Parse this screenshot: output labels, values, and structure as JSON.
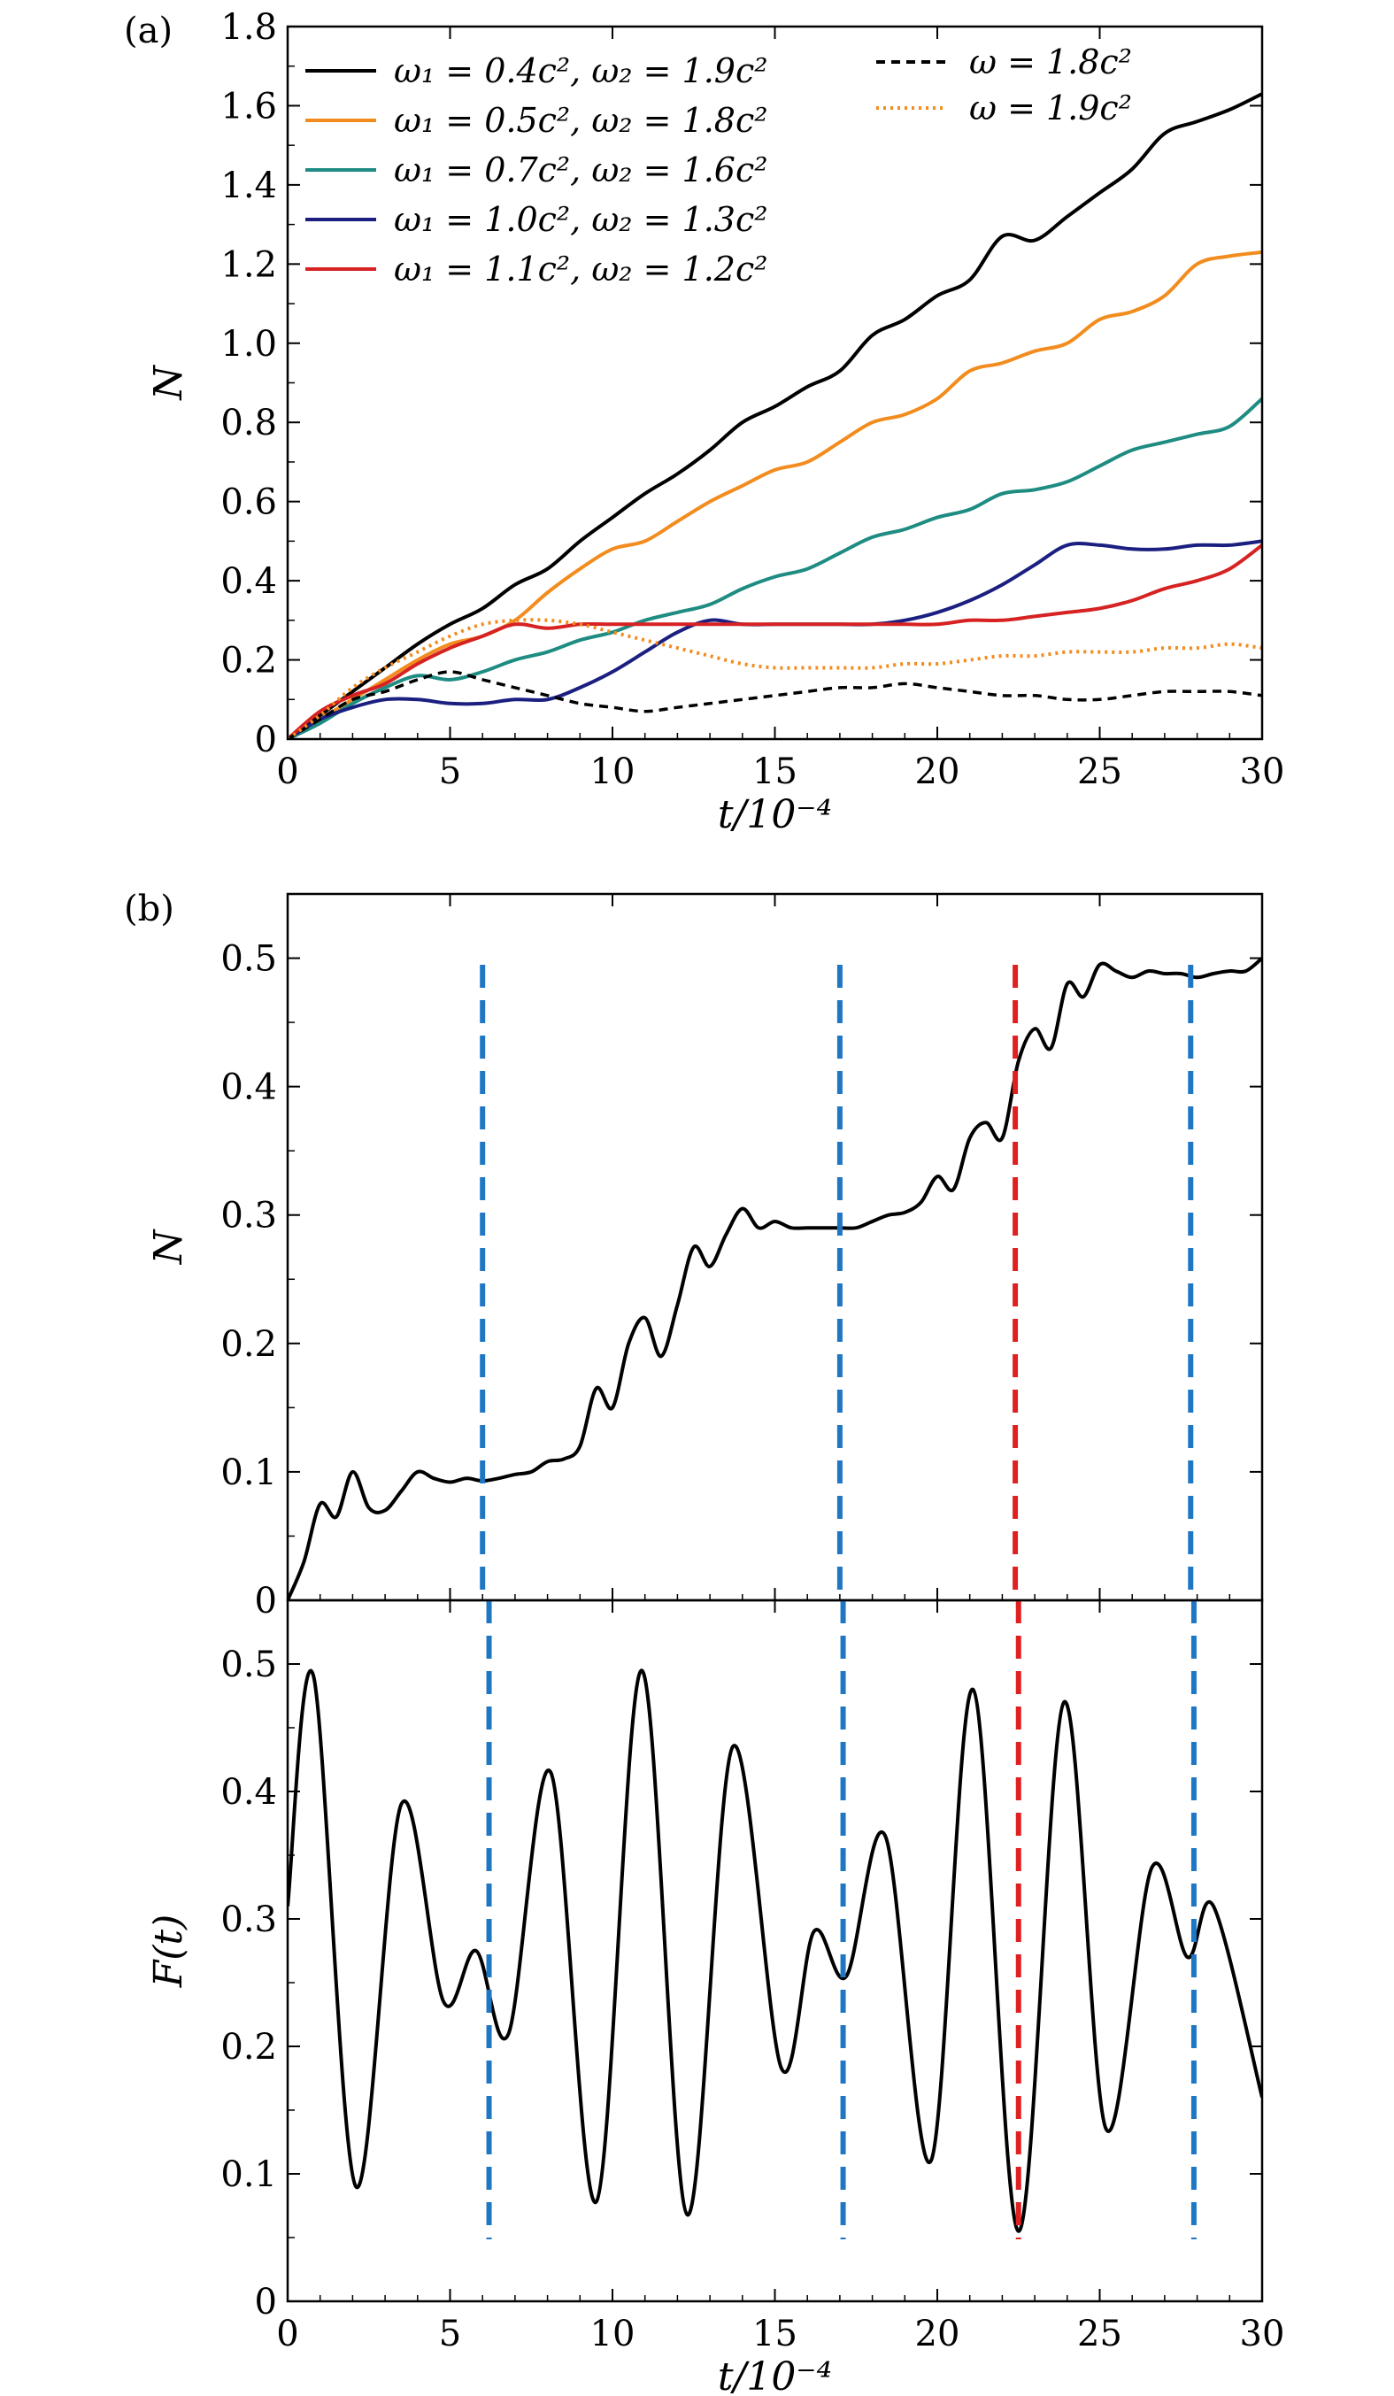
{
  "chart_data": [
    {
      "panel": "(a)",
      "type": "line",
      "xlabel": "t/10⁻⁴",
      "ylabel": "N",
      "xlim": [
        0,
        30
      ],
      "ylim": [
        0,
        1.8
      ],
      "xticks": [
        0,
        5,
        10,
        15,
        20,
        25,
        30
      ],
      "yticks": [
        0,
        0.2,
        0.4,
        0.6,
        0.8,
        1.0,
        1.2,
        1.4,
        1.6,
        1.8
      ],
      "ytick_labels": [
        "0",
        "0.2",
        "0.4",
        "0.6",
        "0.8",
        "1.0",
        "1.2",
        "1.4",
        "1.6",
        "1.8"
      ],
      "legend_position": "top-left",
      "series": [
        {
          "name": "ω₁ = 0.4c², ω₂ = 1.9c²",
          "color": "#000000",
          "style": "solid",
          "x": [
            0,
            1,
            2,
            3,
            4,
            5,
            6,
            7,
            8,
            9,
            10,
            11,
            12,
            13,
            14,
            15,
            16,
            17,
            18,
            19,
            20,
            21,
            22,
            23,
            24,
            25,
            26,
            27,
            28,
            29,
            30
          ],
          "y": [
            0,
            0.06,
            0.12,
            0.18,
            0.24,
            0.29,
            0.33,
            0.39,
            0.43,
            0.5,
            0.56,
            0.62,
            0.67,
            0.73,
            0.8,
            0.84,
            0.89,
            0.93,
            1.02,
            1.06,
            1.12,
            1.16,
            1.27,
            1.26,
            1.32,
            1.38,
            1.44,
            1.53,
            1.56,
            1.59,
            1.63
          ]
        },
        {
          "name": "ω₁ = 0.5c², ω₂ = 1.8c²",
          "color": "#f28c1e",
          "style": "solid",
          "x": [
            0,
            1,
            2,
            3,
            4,
            5,
            6,
            7,
            8,
            9,
            10,
            11,
            12,
            13,
            14,
            15,
            16,
            17,
            18,
            19,
            20,
            21,
            22,
            23,
            24,
            25,
            26,
            27,
            28,
            29,
            30
          ],
          "y": [
            0,
            0.05,
            0.1,
            0.15,
            0.2,
            0.24,
            0.26,
            0.3,
            0.37,
            0.43,
            0.48,
            0.5,
            0.55,
            0.6,
            0.64,
            0.68,
            0.7,
            0.75,
            0.8,
            0.82,
            0.86,
            0.93,
            0.95,
            0.98,
            1.0,
            1.06,
            1.08,
            1.12,
            1.2,
            1.22,
            1.23
          ]
        },
        {
          "name": "ω₁ = 0.7c², ω₂ = 1.6c²",
          "color": "#1e8c82",
          "style": "solid",
          "x": [
            0,
            1,
            2,
            3,
            4,
            5,
            6,
            7,
            8,
            9,
            10,
            11,
            12,
            13,
            14,
            15,
            16,
            17,
            18,
            19,
            20,
            21,
            22,
            23,
            24,
            25,
            26,
            27,
            28,
            29,
            30
          ],
          "y": [
            0,
            0.04,
            0.09,
            0.13,
            0.16,
            0.15,
            0.17,
            0.2,
            0.22,
            0.25,
            0.27,
            0.3,
            0.32,
            0.34,
            0.38,
            0.41,
            0.43,
            0.47,
            0.51,
            0.53,
            0.56,
            0.58,
            0.62,
            0.63,
            0.65,
            0.69,
            0.73,
            0.75,
            0.77,
            0.79,
            0.86
          ]
        },
        {
          "name": "ω₁ = 1.0c², ω₂ = 1.3c²",
          "color": "#1a1f80",
          "style": "solid",
          "x": [
            0,
            1,
            2,
            3,
            4,
            5,
            6,
            7,
            8,
            9,
            10,
            11,
            12,
            13,
            14,
            15,
            16,
            17,
            18,
            19,
            20,
            21,
            22,
            23,
            24,
            25,
            26,
            27,
            28,
            29,
            30
          ],
          "y": [
            0,
            0.05,
            0.08,
            0.1,
            0.1,
            0.09,
            0.09,
            0.1,
            0.1,
            0.13,
            0.17,
            0.22,
            0.27,
            0.3,
            0.29,
            0.29,
            0.29,
            0.29,
            0.29,
            0.3,
            0.32,
            0.35,
            0.39,
            0.44,
            0.49,
            0.49,
            0.48,
            0.48,
            0.49,
            0.49,
            0.5
          ]
        },
        {
          "name": "ω₁ = 1.1c², ω₂ = 1.2c²",
          "color": "#d62222",
          "style": "solid",
          "x": [
            0,
            1,
            2,
            3,
            4,
            5,
            6,
            7,
            8,
            9,
            10,
            11,
            12,
            13,
            14,
            15,
            16,
            17,
            18,
            19,
            20,
            21,
            22,
            23,
            24,
            25,
            26,
            27,
            28,
            29,
            30
          ],
          "y": [
            0,
            0.07,
            0.11,
            0.14,
            0.19,
            0.23,
            0.26,
            0.29,
            0.28,
            0.29,
            0.29,
            0.29,
            0.29,
            0.29,
            0.29,
            0.29,
            0.29,
            0.29,
            0.29,
            0.29,
            0.29,
            0.3,
            0.3,
            0.31,
            0.32,
            0.33,
            0.35,
            0.38,
            0.4,
            0.43,
            0.49
          ]
        },
        {
          "name": "ω = 1.8c²",
          "color": "#000000",
          "style": "dashed",
          "x": [
            0,
            1,
            2,
            3,
            4,
            5,
            6,
            7,
            8,
            9,
            10,
            11,
            12,
            13,
            14,
            15,
            16,
            17,
            18,
            19,
            20,
            21,
            22,
            23,
            24,
            25,
            26,
            27,
            28,
            29,
            30
          ],
          "y": [
            0,
            0.05,
            0.1,
            0.12,
            0.15,
            0.17,
            0.15,
            0.13,
            0.11,
            0.09,
            0.08,
            0.07,
            0.08,
            0.09,
            0.1,
            0.11,
            0.12,
            0.13,
            0.13,
            0.14,
            0.13,
            0.12,
            0.11,
            0.11,
            0.1,
            0.1,
            0.11,
            0.12,
            0.12,
            0.12,
            0.11
          ]
        },
        {
          "name": "ω = 1.9c²",
          "color": "#f28c1e",
          "style": "dotted",
          "x": [
            0,
            1,
            2,
            3,
            4,
            5,
            6,
            7,
            8,
            9,
            10,
            11,
            12,
            13,
            14,
            15,
            16,
            17,
            18,
            19,
            20,
            21,
            22,
            23,
            24,
            25,
            26,
            27,
            28,
            29,
            30
          ],
          "y": [
            0,
            0.06,
            0.13,
            0.18,
            0.22,
            0.26,
            0.29,
            0.3,
            0.3,
            0.29,
            0.27,
            0.25,
            0.23,
            0.21,
            0.19,
            0.18,
            0.18,
            0.18,
            0.18,
            0.19,
            0.19,
            0.2,
            0.21,
            0.21,
            0.22,
            0.22,
            0.22,
            0.23,
            0.23,
            0.24,
            0.23
          ]
        }
      ]
    },
    {
      "panel": "(b)",
      "type": "line",
      "xlabel": "",
      "ylabel": "N",
      "xlim": [
        0,
        30
      ],
      "ylim": [
        0,
        0.55
      ],
      "yticks": [
        0,
        0.1,
        0.2,
        0.3,
        0.4,
        0.5
      ],
      "ytick_labels": [
        "0",
        "0.1",
        "0.2",
        "0.3",
        "0.4",
        "0.5"
      ],
      "series": [
        {
          "name": "N(t)",
          "color": "#000000",
          "style": "solid",
          "x": [
            0,
            0.5,
            1,
            1.5,
            2,
            2.5,
            3,
            3.5,
            4,
            4.5,
            5,
            5.5,
            6,
            6.5,
            7,
            7.5,
            8,
            8.5,
            9,
            9.5,
            10,
            10.5,
            11,
            11.5,
            12,
            12.5,
            13,
            13.5,
            14,
            14.5,
            15,
            15.5,
            16,
            16.5,
            17,
            17.5,
            18,
            18.5,
            19,
            19.5,
            20,
            20.5,
            21,
            21.5,
            22,
            22.5,
            23,
            23.5,
            24,
            24.5,
            25,
            25.5,
            26,
            26.5,
            27,
            27.5,
            28,
            28.5,
            29,
            29.5,
            30
          ],
          "y": [
            0,
            0.03,
            0.075,
            0.065,
            0.1,
            0.072,
            0.07,
            0.085,
            0.1,
            0.095,
            0.092,
            0.095,
            0.093,
            0.095,
            0.098,
            0.1,
            0.108,
            0.11,
            0.12,
            0.165,
            0.15,
            0.2,
            0.22,
            0.19,
            0.23,
            0.275,
            0.26,
            0.285,
            0.305,
            0.29,
            0.295,
            0.29,
            0.29,
            0.29,
            0.29,
            0.29,
            0.295,
            0.3,
            0.302,
            0.31,
            0.33,
            0.32,
            0.36,
            0.372,
            0.36,
            0.42,
            0.445,
            0.43,
            0.48,
            0.47,
            0.495,
            0.49,
            0.485,
            0.49,
            0.488,
            0.488,
            0.485,
            0.488,
            0.49,
            0.49,
            0.5
          ]
        },
        {
          "name": "markers",
          "type": "vlines",
          "x": [
            6,
            17,
            22.4,
            27.8
          ],
          "colors": [
            "#1f77c4",
            "#1f77c4",
            "#e02020",
            "#1f77c4"
          ]
        }
      ]
    },
    {
      "panel": "",
      "type": "line",
      "xlabel": "t/10⁻⁴",
      "ylabel": "F(t)",
      "xlim": [
        0,
        30
      ],
      "ylim": [
        0,
        0.55
      ],
      "xticks": [
        0,
        5,
        10,
        15,
        20,
        25,
        30
      ],
      "yticks": [
        0,
        0.1,
        0.2,
        0.3,
        0.4,
        0.5
      ],
      "ytick_labels": [
        "0",
        "0.1",
        "0.2",
        "0.3",
        "0.4",
        "0.5"
      ],
      "series": [
        {
          "name": "F(t)",
          "color": "#000000",
          "style": "solid",
          "x": [
            0,
            0.8,
            2.1,
            3.5,
            4.8,
            5.8,
            6.8,
            8.1,
            9.5,
            10.9,
            12.3,
            13.7,
            15.2,
            16.2,
            17.2,
            18.4,
            19.8,
            21.1,
            22.5,
            23.9,
            25.2,
            26.6,
            27.7,
            28.5,
            30
          ],
          "y": [
            0.31,
            0.49,
            0.09,
            0.39,
            0.235,
            0.275,
            0.21,
            0.415,
            0.078,
            0.495,
            0.068,
            0.435,
            0.183,
            0.29,
            0.255,
            0.365,
            0.11,
            0.48,
            0.055,
            0.47,
            0.135,
            0.34,
            0.27,
            0.31,
            0.16
          ]
        },
        {
          "name": "markers",
          "type": "vlines",
          "x": [
            6.2,
            17.1,
            22.5,
            27.9
          ],
          "colors": [
            "#1f77c4",
            "#1f77c4",
            "#e02020",
            "#1f77c4"
          ]
        }
      ]
    }
  ]
}
